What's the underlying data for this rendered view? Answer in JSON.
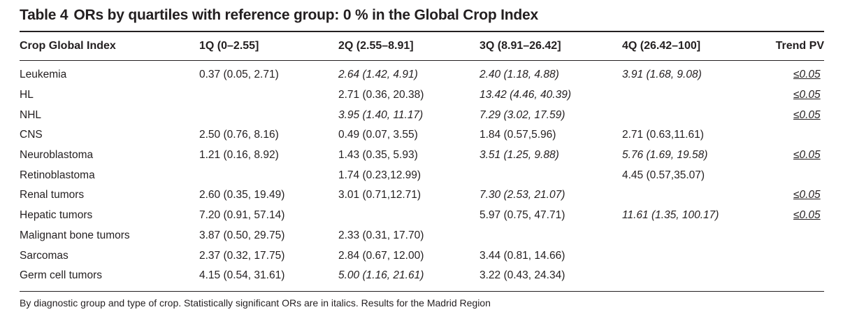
{
  "title": {
    "label": "Table 4",
    "text": "ORs by quartiles with reference group: 0 % in the Global Crop Index"
  },
  "columns": [
    "Crop Global Index",
    "1Q (0–2.55]",
    "2Q (2.55–8.91]",
    "3Q (8.91–26.42]",
    "4Q (26.42–100]",
    "Trend PV"
  ],
  "rows": [
    {
      "name": "Leukemia",
      "cells": [
        {
          "v": "0.37 (0.05, 2.71)",
          "it": false
        },
        {
          "v": "2.64 (1.42, 4.91)",
          "it": true
        },
        {
          "v": "2.40 (1.18, 4.88)",
          "it": true
        },
        {
          "v": "3.91 (1.68, 9.08)",
          "it": true
        }
      ],
      "pv": "≤0.05"
    },
    {
      "name": "HL",
      "cells": [
        {
          "v": "",
          "it": false
        },
        {
          "v": "2.71 (0.36, 20.38)",
          "it": false
        },
        {
          "v": "13.42 (4.46, 40.39)",
          "it": true
        },
        {
          "v": "",
          "it": false
        }
      ],
      "pv": "≤0.05"
    },
    {
      "name": "NHL",
      "cells": [
        {
          "v": "",
          "it": false
        },
        {
          "v": "3.95 (1.40, 11.17)",
          "it": true
        },
        {
          "v": "7.29 (3.02, 17.59)",
          "it": true
        },
        {
          "v": "",
          "it": false
        }
      ],
      "pv": "≤0.05"
    },
    {
      "name": "CNS",
      "cells": [
        {
          "v": "2.50 (0.76, 8.16)",
          "it": false
        },
        {
          "v": "0.49 (0.07, 3.55)",
          "it": false
        },
        {
          "v": "1.84 (0.57,5.96)",
          "it": false
        },
        {
          "v": "2.71 (0.63,11.61)",
          "it": false
        }
      ],
      "pv": ""
    },
    {
      "name": "Neuroblastoma",
      "cells": [
        {
          "v": "1.21 (0.16, 8.92)",
          "it": false
        },
        {
          "v": "1.43 (0.35, 5.93)",
          "it": false
        },
        {
          "v": "3.51 (1.25, 9.88)",
          "it": true
        },
        {
          "v": "5.76 (1.69, 19.58)",
          "it": true
        }
      ],
      "pv": "≤0.05"
    },
    {
      "name": "Retinoblastoma",
      "cells": [
        {
          "v": "",
          "it": false
        },
        {
          "v": "1.74 (0.23,12.99)",
          "it": false
        },
        {
          "v": "",
          "it": false
        },
        {
          "v": "4.45 (0.57,35.07)",
          "it": false
        }
      ],
      "pv": ""
    },
    {
      "name": "Renal tumors",
      "cells": [
        {
          "v": "2.60 (0.35, 19.49)",
          "it": false
        },
        {
          "v": "3.01 (0.71,12.71)",
          "it": false
        },
        {
          "v": "7.30 (2.53, 21.07)",
          "it": true
        },
        {
          "v": "",
          "it": false
        }
      ],
      "pv": "≤0.05"
    },
    {
      "name": "Hepatic tumors",
      "cells": [
        {
          "v": "7.20 (0.91, 57.14)",
          "it": false
        },
        {
          "v": "",
          "it": false
        },
        {
          "v": "5.97 (0.75, 47.71)",
          "it": false
        },
        {
          "v": "11.61 (1.35, 100.17)",
          "it": true
        }
      ],
      "pv": "≤0.05"
    },
    {
      "name": "Malignant bone tumors",
      "cells": [
        {
          "v": "3.87 (0.50, 29.75)",
          "it": false
        },
        {
          "v": "2.33 (0.31, 17.70)",
          "it": false
        },
        {
          "v": "",
          "it": false
        },
        {
          "v": "",
          "it": false
        }
      ],
      "pv": ""
    },
    {
      "name": "Sarcomas",
      "cells": [
        {
          "v": "2.37 (0.32, 17.75)",
          "it": false
        },
        {
          "v": "2.84 (0.67, 12.00)",
          "it": false
        },
        {
          "v": "3.44 (0.81, 14.66)",
          "it": false
        },
        {
          "v": "",
          "it": false
        }
      ],
      "pv": ""
    },
    {
      "name": "Germ cell tumors",
      "cells": [
        {
          "v": "4.15 (0.54, 31.61)",
          "it": false
        },
        {
          "v": "5.00 (1.16, 21.61)",
          "it": true
        },
        {
          "v": "3.22 (0.43, 24.34)",
          "it": false
        },
        {
          "v": "",
          "it": false
        }
      ],
      "pv": ""
    }
  ],
  "footnote": "By diagnostic group and type of crop. Statistically significant ORs are in italics. Results for the Madrid Region"
}
